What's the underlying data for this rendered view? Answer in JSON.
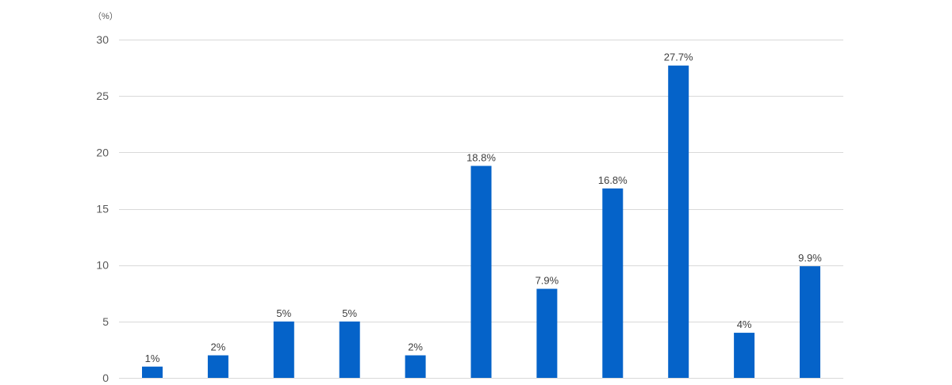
{
  "chart_data": {
    "type": "bar",
    "unit_label": "（%）",
    "ylim": [
      0,
      30
    ],
    "y_ticks": [
      0,
      5,
      10,
      15,
      20,
      25,
      30
    ],
    "y_tick_labels": [
      "0",
      "5",
      "10",
      "15",
      "20",
      "25",
      "30"
    ],
    "grid": true,
    "values": [
      1,
      2,
      5,
      5,
      2,
      18.8,
      7.9,
      16.8,
      27.7,
      4,
      9.9
    ],
    "data_labels": [
      "1%",
      "2%",
      "5%",
      "5%",
      "2%",
      "18.8%",
      "7.9%",
      "16.8%",
      "27.7%",
      "4%",
      "9.9%"
    ],
    "bar_color": "#0563c9",
    "grid_color": "#d9d9d9"
  }
}
